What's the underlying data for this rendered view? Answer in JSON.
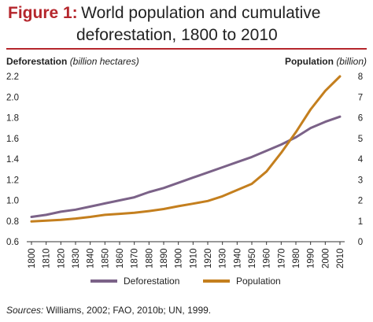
{
  "figure": {
    "label": "Figure 1:",
    "title_line1": "World population and cumulative",
    "title_line2": "deforestation, 1800 to 2010"
  },
  "sources": {
    "label": "Sources:",
    "text": " Williams, 2002; FAO, 2010b; UN, 1999."
  },
  "colors": {
    "accent": "#b5262c",
    "deforestation": "#7b6288",
    "population": "#c47f1e"
  },
  "chart_data": {
    "type": "line",
    "x": [
      1800,
      1810,
      1820,
      1830,
      1840,
      1850,
      1860,
      1870,
      1880,
      1890,
      1900,
      1910,
      1920,
      1930,
      1940,
      1950,
      1960,
      1970,
      1980,
      1990,
      2000,
      2010
    ],
    "left_axis": {
      "label_bold": "Deforestation",
      "label_italic": "(billion hectares)",
      "ylim": [
        0.6,
        2.2
      ],
      "ticks": [
        "2.2",
        "2.0",
        "1.8",
        "1.6",
        "1.4",
        "1.2",
        "1.0",
        "0.8",
        "0.6"
      ]
    },
    "right_axis": {
      "label_bold": "Population",
      "label_italic": "(billion)",
      "ylim": [
        0,
        8
      ],
      "ticks": [
        "8",
        "7",
        "6",
        "5",
        "4",
        "3",
        "2",
        "1",
        "0"
      ]
    },
    "x_ticks": [
      "1800",
      "1810",
      "1820",
      "1830",
      "1840",
      "1850",
      "1860",
      "1870",
      "1880",
      "1890",
      "1900",
      "1910",
      "1920",
      "1930",
      "1940",
      "1950",
      "1960",
      "1970",
      "1980",
      "1990",
      "2000",
      "2010"
    ],
    "series": [
      {
        "name": "Deforestation",
        "axis": "left",
        "color": "#7b6288",
        "values": [
          0.84,
          0.86,
          0.89,
          0.91,
          0.94,
          0.97,
          1.0,
          1.03,
          1.08,
          1.12,
          1.17,
          1.22,
          1.27,
          1.32,
          1.37,
          1.42,
          1.48,
          1.54,
          1.61,
          1.7,
          1.76,
          1.81
        ]
      },
      {
        "name": "Population",
        "axis": "right",
        "color": "#c47f1e",
        "values": [
          0.98,
          1.02,
          1.06,
          1.12,
          1.2,
          1.3,
          1.35,
          1.4,
          1.48,
          1.58,
          1.72,
          1.84,
          1.97,
          2.2,
          2.5,
          2.8,
          3.4,
          4.3,
          5.3,
          6.4,
          7.3,
          8.0
        ]
      }
    ],
    "legend": [
      "Deforestation",
      "Population"
    ],
    "legend_position": "bottom",
    "grid": false
  }
}
